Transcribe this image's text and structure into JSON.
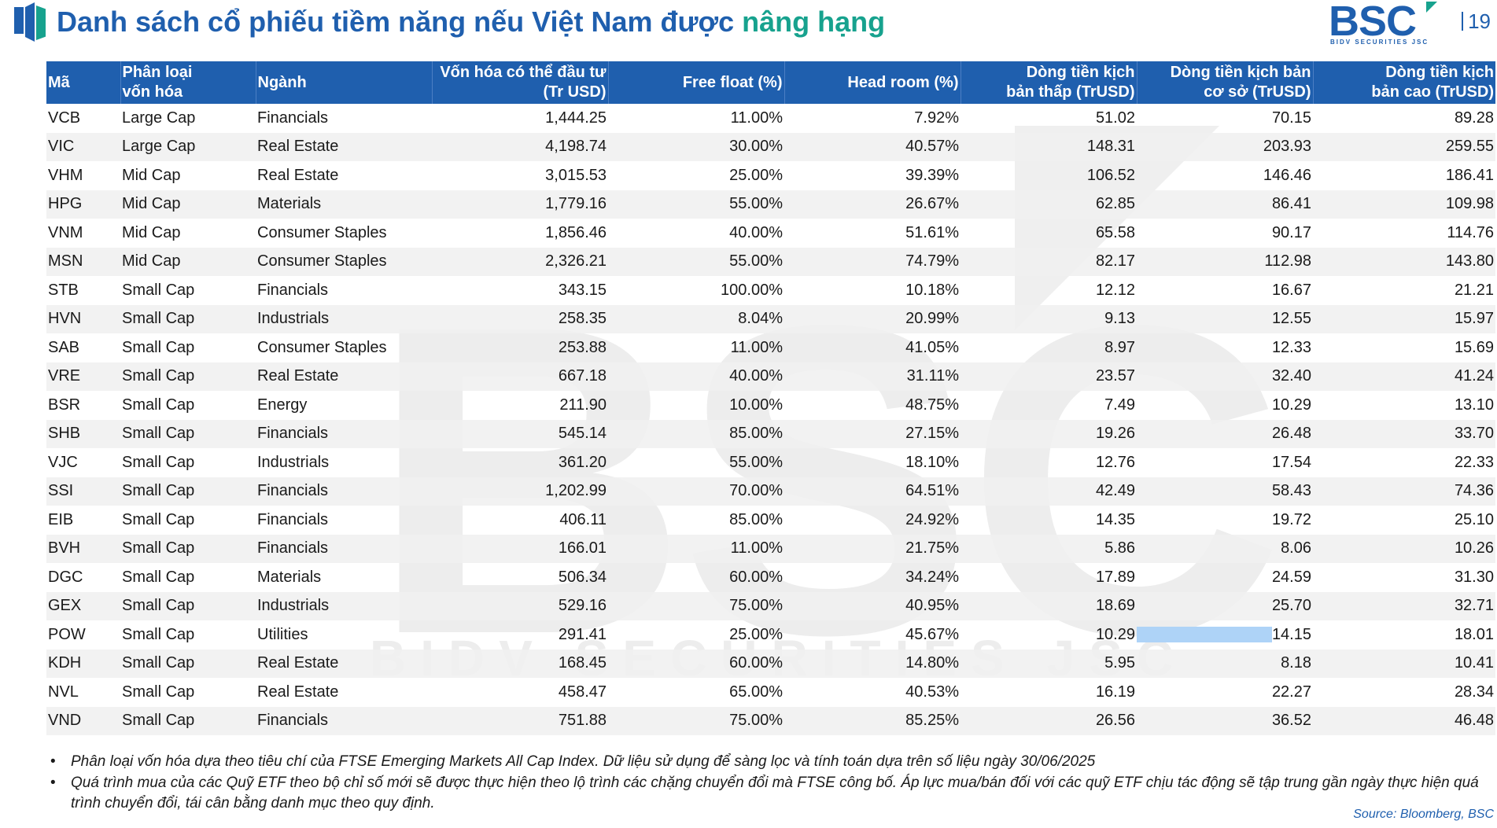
{
  "title": {
    "main": "Danh sách cổ phiếu tiềm năng nếu Việt Nam được ",
    "accent": "nâng hạng"
  },
  "brand": {
    "logo_text": "BSC",
    "logo_sub": "BIDV SECURITIES JSC",
    "page_number": "19"
  },
  "watermark": {
    "text": "BSC",
    "sub": "BIDV SECURITIES JSC"
  },
  "colors": {
    "brand_blue": "#1f5fae",
    "brand_teal": "#17a28e",
    "highlight": "#aed3f7"
  },
  "table": {
    "headers": [
      [
        "Mã"
      ],
      [
        "Phân loại",
        "vốn hóa"
      ],
      [
        "Ngành"
      ],
      [
        "Vốn hóa có thể đầu tư",
        "(Tr USD)"
      ],
      [
        "Free float (%)"
      ],
      [
        "Head room (%)"
      ],
      [
        "Dòng tiền kịch",
        "bản thấp (TrUSD)"
      ],
      [
        "Dòng tiền kịch bản",
        "cơ sở (TrUSD)"
      ],
      [
        "Dòng tiền kịch",
        "bản cao (TrUSD)"
      ]
    ],
    "rows": [
      [
        "VCB",
        "Large Cap",
        "Financials",
        "1,444.25",
        "11.00%",
        "7.92%",
        "51.02",
        "70.15",
        "89.28"
      ],
      [
        "VIC",
        "Large Cap",
        "Real Estate",
        "4,198.74",
        "30.00%",
        "40.57%",
        "148.31",
        "203.93",
        "259.55"
      ],
      [
        "VHM",
        "Mid Cap",
        "Real Estate",
        "3,015.53",
        "25.00%",
        "39.39%",
        "106.52",
        "146.46",
        "186.41"
      ],
      [
        "HPG",
        "Mid Cap",
        "Materials",
        "1,779.16",
        "55.00%",
        "26.67%",
        "62.85",
        "86.41",
        "109.98"
      ],
      [
        "VNM",
        "Mid Cap",
        "Consumer Staples",
        "1,856.46",
        "40.00%",
        "51.61%",
        "65.58",
        "90.17",
        "114.76"
      ],
      [
        "MSN",
        "Mid Cap",
        "Consumer Staples",
        "2,326.21",
        "55.00%",
        "74.79%",
        "82.17",
        "112.98",
        "143.80"
      ],
      [
        "STB",
        "Small Cap",
        "Financials",
        "343.15",
        "100.00%",
        "10.18%",
        "12.12",
        "16.67",
        "21.21"
      ],
      [
        "HVN",
        "Small Cap",
        "Industrials",
        "258.35",
        "8.04%",
        "20.99%",
        "9.13",
        "12.55",
        "15.97"
      ],
      [
        "SAB",
        "Small Cap",
        "Consumer Staples",
        "253.88",
        "11.00%",
        "41.05%",
        "8.97",
        "12.33",
        "15.69"
      ],
      [
        "VRE",
        "Small Cap",
        "Real Estate",
        "667.18",
        "40.00%",
        "31.11%",
        "23.57",
        "32.40",
        "41.24"
      ],
      [
        "BSR",
        "Small Cap",
        "Energy",
        "211.90",
        "10.00%",
        "48.75%",
        "7.49",
        "10.29",
        "13.10"
      ],
      [
        "SHB",
        "Small Cap",
        "Financials",
        "545.14",
        "85.00%",
        "27.15%",
        "19.26",
        "26.48",
        "33.70"
      ],
      [
        "VJC",
        "Small Cap",
        "Industrials",
        "361.20",
        "55.00%",
        "18.10%",
        "12.76",
        "17.54",
        "22.33"
      ],
      [
        "SSI",
        "Small Cap",
        "Financials",
        "1,202.99",
        "70.00%",
        "64.51%",
        "42.49",
        "58.43",
        "74.36"
      ],
      [
        "EIB",
        "Small Cap",
        "Financials",
        "406.11",
        "85.00%",
        "24.92%",
        "14.35",
        "19.72",
        "25.10"
      ],
      [
        "BVH",
        "Small Cap",
        "Financials",
        "166.01",
        "11.00%",
        "21.75%",
        "5.86",
        "8.06",
        "10.26"
      ],
      [
        "DGC",
        "Small Cap",
        "Materials",
        "506.34",
        "60.00%",
        "34.24%",
        "17.89",
        "24.59",
        "31.30"
      ],
      [
        "GEX",
        "Small Cap",
        "Industrials",
        "529.16",
        "75.00%",
        "40.95%",
        "18.69",
        "25.70",
        "32.71"
      ],
      [
        "POW",
        "Small Cap",
        "Utilities",
        "291.41",
        "25.00%",
        "45.67%",
        "10.29",
        "14.15",
        "18.01"
      ],
      [
        "KDH",
        "Small Cap",
        "Real Estate",
        "168.45",
        "60.00%",
        "14.80%",
        "5.95",
        "8.18",
        "10.41"
      ],
      [
        "NVL",
        "Small Cap",
        "Real Estate",
        "458.47",
        "65.00%",
        "40.53%",
        "16.19",
        "22.27",
        "28.34"
      ],
      [
        "VND",
        "Small Cap",
        "Financials",
        "751.88",
        "75.00%",
        "85.25%",
        "26.56",
        "36.52",
        "46.48"
      ]
    ]
  },
  "notes": [
    "Phân loại vốn hóa dựa theo tiêu chí của FTSE Emerging Markets All Cap Index. Dữ liệu sử dụng để sàng lọc và tính toán dựa trên số liệu ngày 30/06/2025",
    "Quá trình mua của các Quỹ ETF theo bộ chỉ số mới sẽ được thực hiện theo lộ trình các chặng chuyển đổi mà FTSE công bố. Áp lực mua/bán đối với các quỹ ETF chịu tác động sẽ tập trung gần ngày thực hiện quá trình chuyển đổi, tái cân bằng danh mục theo quy định."
  ],
  "source": "Source: Bloomberg, BSC"
}
